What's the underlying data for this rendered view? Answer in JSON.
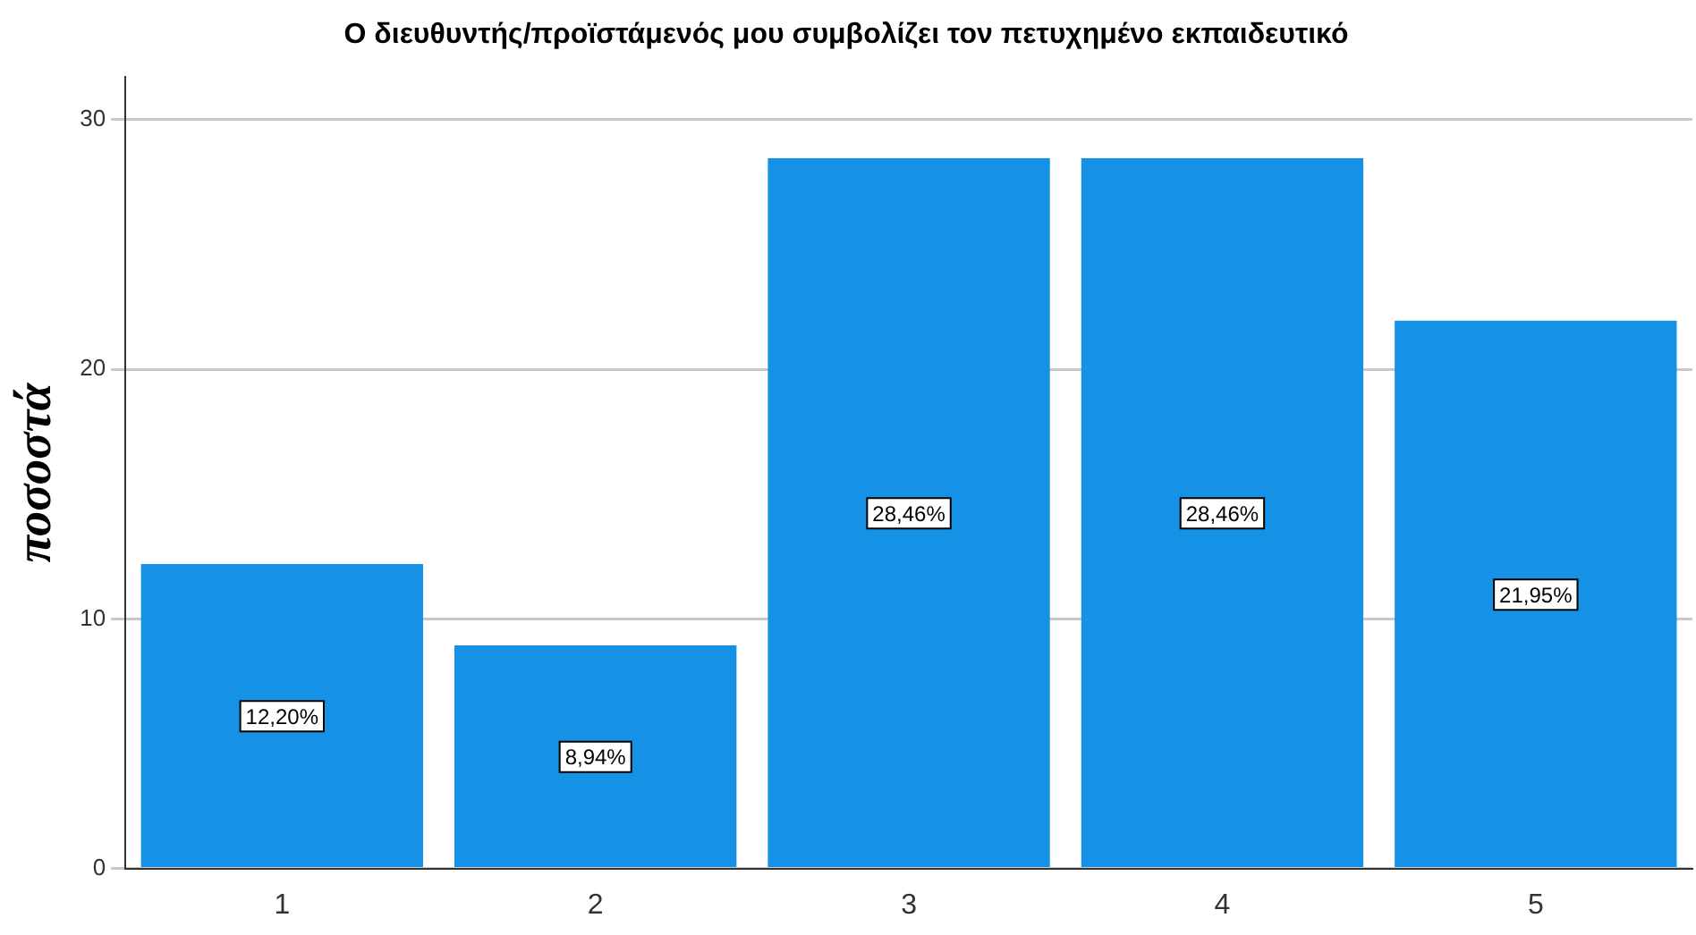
{
  "chart_data": {
    "type": "bar",
    "title": "Ο διευθυντής/προϊστάμενός μου συμβολίζει τον πετυχημένο εκπαιδευτικό",
    "ylabel": "ποσοστά",
    "categories": [
      "1",
      "2",
      "3",
      "4",
      "5"
    ],
    "values": [
      12.2,
      8.94,
      28.46,
      28.46,
      21.95
    ],
    "value_labels": [
      "12,20%",
      "8,94%",
      "28,46%",
      "28,46%",
      "21,95%"
    ],
    "color": "#1591e6",
    "ylim": [
      0,
      31.7
    ],
    "yticks": [
      0,
      10,
      20,
      30
    ],
    "grid": "y",
    "legend": false
  }
}
